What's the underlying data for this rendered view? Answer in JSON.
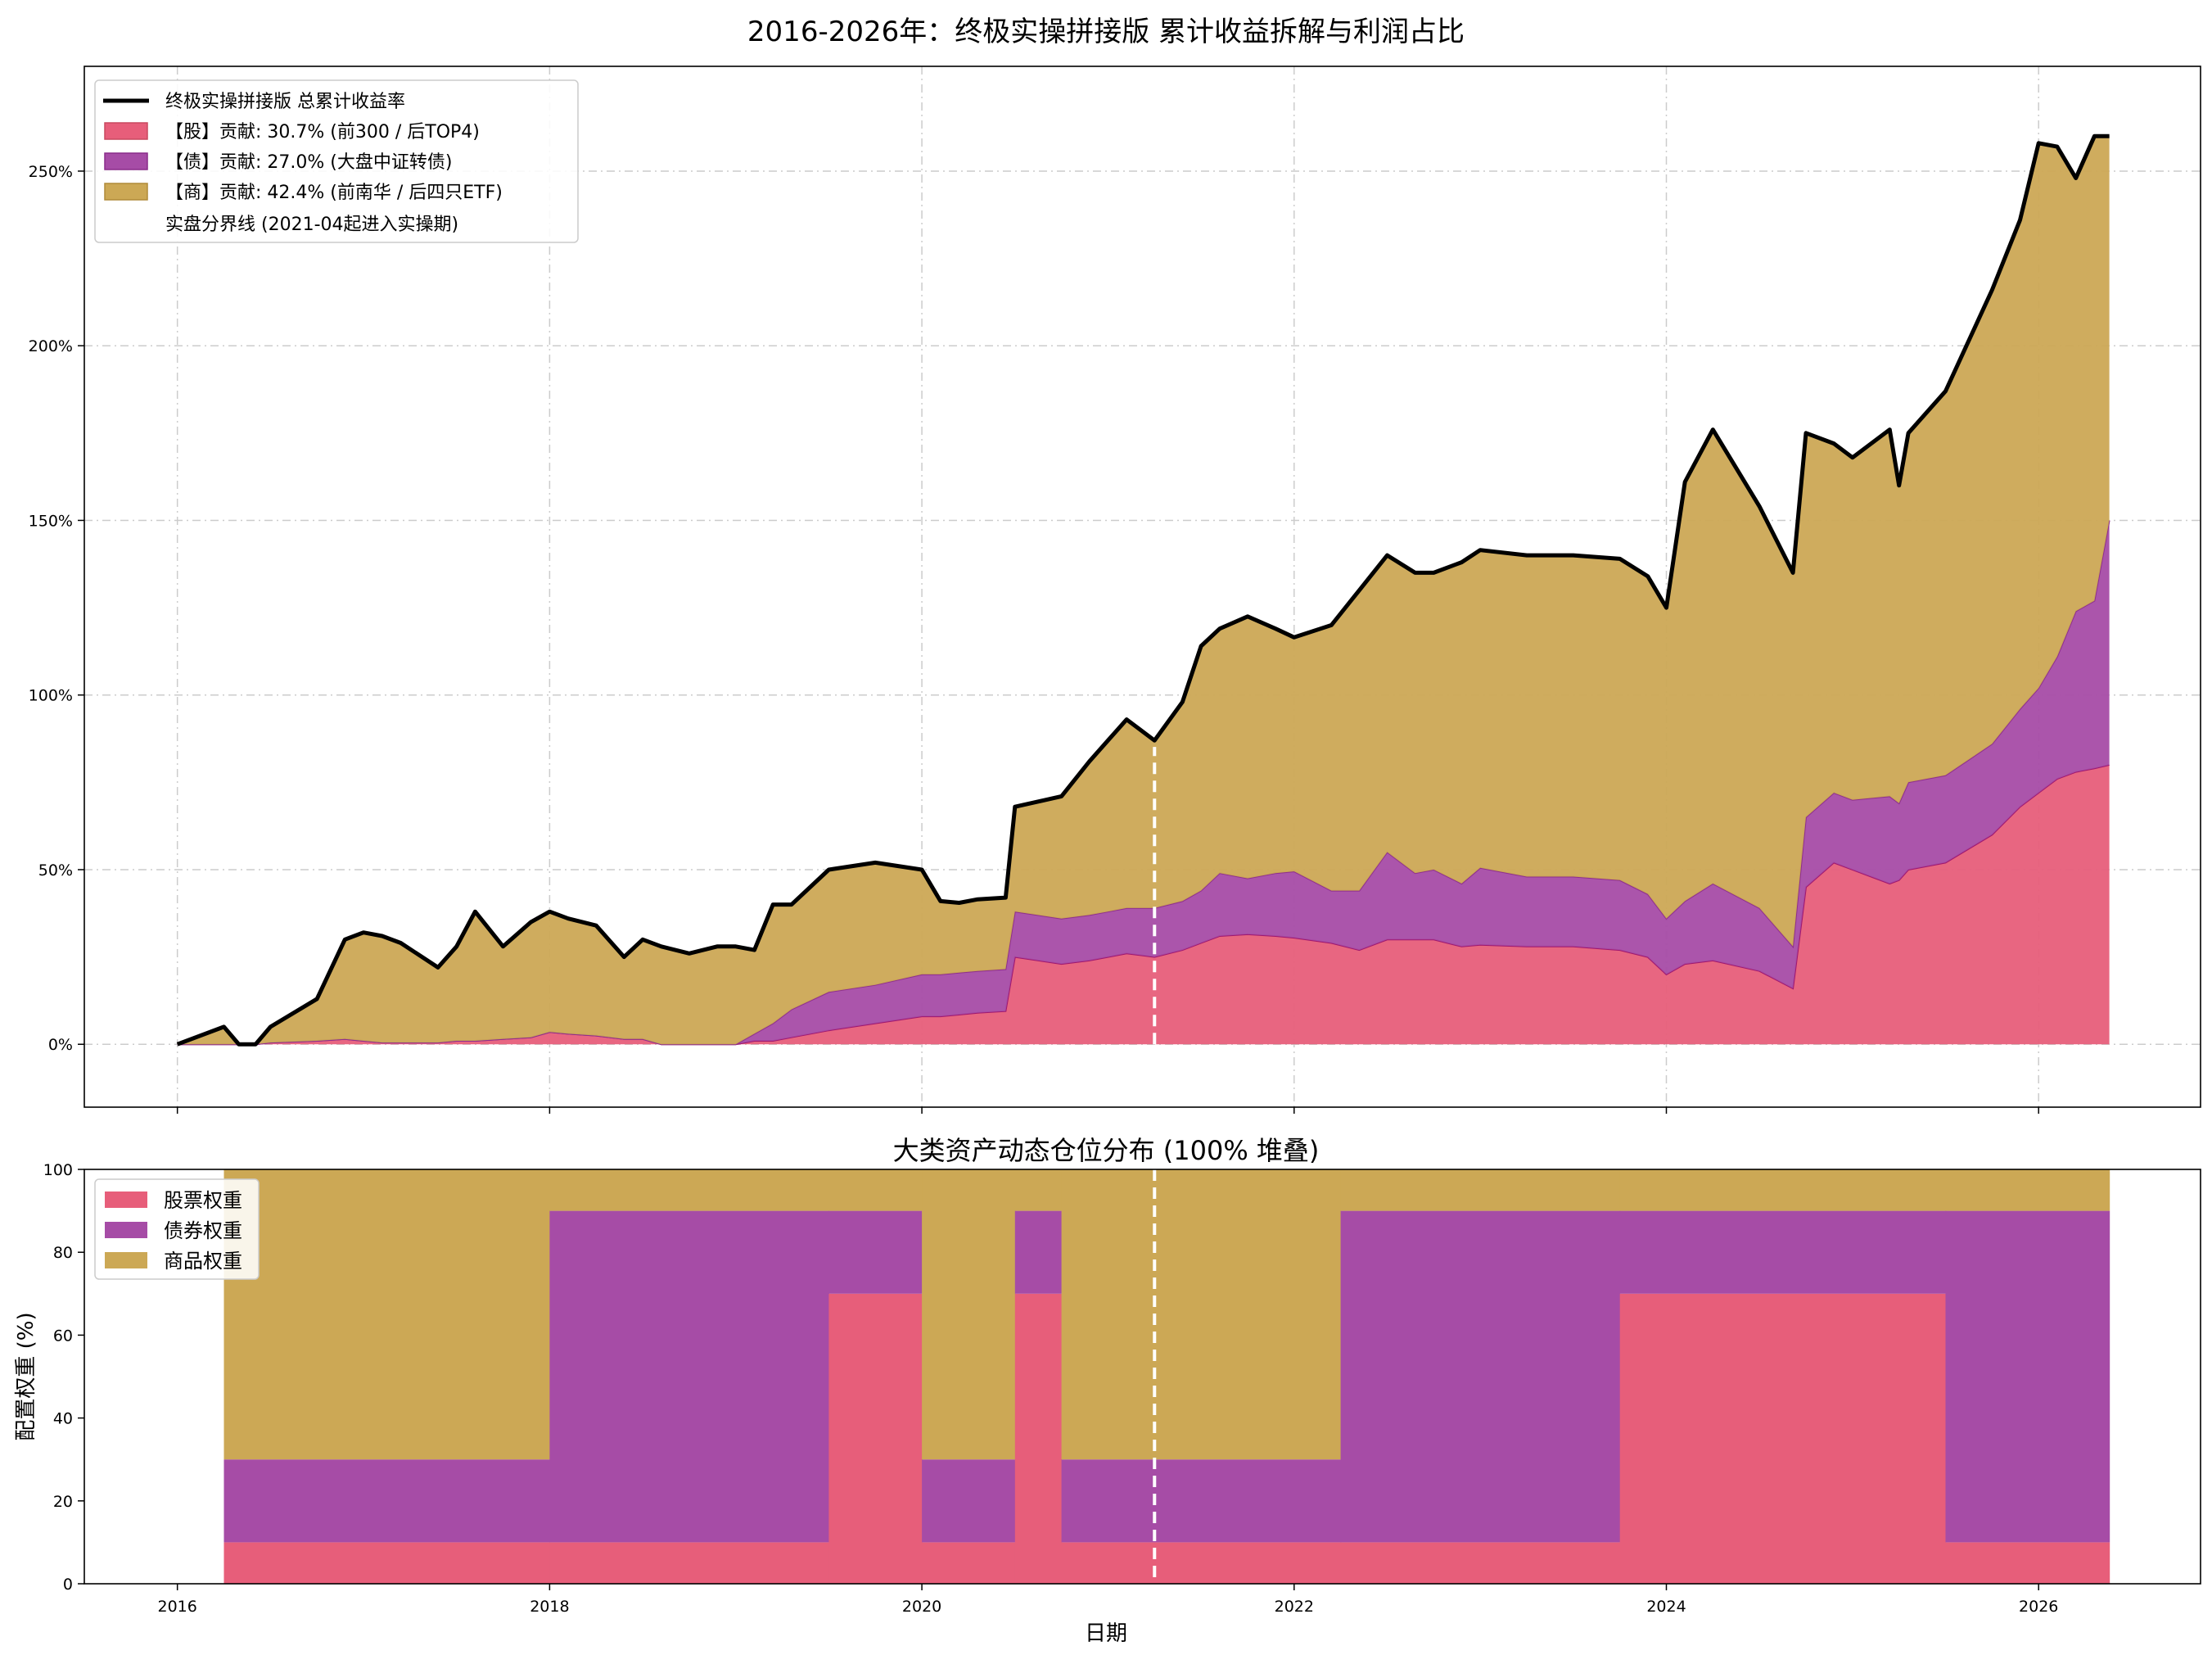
{
  "chart_data": [
    {
      "type": "area",
      "title": "2016-2026年：终极实操拼接版 累计收益拆解与利润占比",
      "xlabel": "",
      "ylabel": "",
      "x_ticks": [
        "2016",
        "2018",
        "2020",
        "2022",
        "2024",
        "2026"
      ],
      "y_ticks": [
        "0%",
        "50%",
        "100%",
        "150%",
        "200%",
        "250%"
      ],
      "ylim": [
        -18,
        280
      ],
      "xlim": [
        2015.5,
        2026.87
      ],
      "grid": true,
      "legend_position": "top-left",
      "legend": [
        {
          "label": "终极实操拼接版 总累计收益率",
          "kind": "line",
          "color": "#000000"
        },
        {
          "label": "【股】贡献: 30.7% (前300 / 后TOP4)",
          "kind": "patch",
          "color": "#E75E7A"
        },
        {
          "label": "【债】贡献: 27.0% (大盘中证转债)",
          "kind": "patch",
          "color": "#A64CA6"
        },
        {
          "label": "【商】贡献: 42.4% (前南华 / 后四只ETF)",
          "kind": "patch",
          "color": "#CCA855"
        },
        {
          "label": "实盘分界线 (2021-04起进入实操期)",
          "kind": "dashed",
          "color": "#ffffff"
        }
      ],
      "divider_x": 2021.25,
      "x": [
        2016.0,
        2016.25,
        2016.33,
        2016.42,
        2016.5,
        2016.75,
        2016.9,
        2017.0,
        2017.1,
        2017.2,
        2017.4,
        2017.5,
        2017.6,
        2017.75,
        2017.9,
        2018.0,
        2018.1,
        2018.25,
        2018.4,
        2018.5,
        2018.6,
        2018.75,
        2018.9,
        2019.0,
        2019.1,
        2019.2,
        2019.3,
        2019.5,
        2019.75,
        2020.0,
        2020.1,
        2020.2,
        2020.3,
        2020.45,
        2020.5,
        2020.75,
        2020.9,
        2021.0,
        2021.1,
        2021.25,
        2021.4,
        2021.5,
        2021.6,
        2021.75,
        2021.9,
        2022.0,
        2022.2,
        2022.35,
        2022.5,
        2022.65,
        2022.75,
        2022.9,
        2023.0,
        2023.25,
        2023.5,
        2023.75,
        2023.9,
        2024.0,
        2024.1,
        2024.25,
        2024.5,
        2024.68,
        2024.75,
        2024.9,
        2025.0,
        2025.2,
        2025.25,
        2025.3,
        2025.5,
        2025.75,
        2025.9,
        2026.0,
        2026.1,
        2026.2,
        2026.3,
        2026.38
      ],
      "series": [
        {
          "name": "【股】贡献: 30.7% (前300 / 后TOP4)",
          "color": "#E75E7A",
          "values": [
            0,
            0,
            0,
            0,
            0.5,
            1,
            1.5,
            1,
            0.5,
            0.5,
            0.5,
            1,
            1,
            1.5,
            2,
            3.5,
            3,
            2.5,
            1.5,
            1.5,
            0,
            0,
            0,
            0,
            1,
            1,
            2,
            4,
            6,
            8,
            8,
            8.5,
            9,
            9.5,
            25,
            23,
            24,
            25,
            26,
            25,
            27,
            29,
            31,
            31.5,
            31,
            30.5,
            29,
            27,
            30,
            30,
            30,
            28,
            28.5,
            28,
            28,
            27,
            25,
            20,
            23,
            24,
            21,
            16,
            45,
            52,
            50,
            46,
            47,
            50,
            52,
            60,
            68,
            72,
            76,
            78,
            79,
            80
          ]
        },
        {
          "name": "【债】贡献: 27.0% (大盘中证转债)",
          "color": "#A64CA6",
          "values": [
            0,
            0,
            0,
            0,
            0,
            0,
            0,
            0,
            0,
            0,
            0,
            0,
            0,
            0,
            0,
            0,
            0,
            0,
            0,
            0,
            0,
            0,
            0,
            0,
            2,
            5,
            8,
            11,
            11,
            12,
            12,
            12,
            12,
            12,
            13,
            13,
            13,
            13,
            13,
            14,
            14,
            15,
            18,
            16,
            18,
            19,
            15,
            17,
            25,
            19,
            20,
            18,
            22,
            20,
            20,
            20,
            18,
            16,
            18,
            22,
            18,
            12,
            20,
            20,
            20,
            25,
            22,
            25,
            25,
            26,
            28,
            30,
            35,
            46,
            48,
            70
          ]
        },
        {
          "name": "【商】贡献: 42.4% (前南华 / 后四只ETF)",
          "color": "#CCA855",
          "values": [
            0,
            5,
            0,
            0,
            4.5,
            12,
            28.5,
            31,
            30.5,
            28.5,
            21.5,
            27,
            37,
            26.5,
            33,
            34.5,
            33,
            31.5,
            23.5,
            28.5,
            28,
            26,
            28,
            28,
            24,
            34,
            30,
            35,
            35,
            30,
            21,
            20,
            20.5,
            20.5,
            30,
            35,
            44,
            49,
            54,
            48,
            57,
            70,
            70,
            75,
            70,
            67,
            76,
            86,
            85,
            86,
            85,
            92,
            91,
            92,
            92,
            92,
            91,
            89,
            120,
            130,
            115,
            107,
            110,
            100,
            98,
            105,
            91,
            100,
            110,
            130,
            140,
            156,
            146,
            124,
            133,
            110
          ]
        }
      ],
      "total_cumulative_return": [
        0,
        5,
        0,
        0,
        5,
        13,
        30,
        32,
        31,
        29,
        22,
        28,
        38,
        28,
        35,
        38,
        36,
        34,
        25,
        30,
        28,
        26,
        28,
        28,
        27,
        40,
        40,
        50,
        52,
        50,
        41,
        40.5,
        41.5,
        42,
        68,
        71,
        81,
        87,
        93,
        87,
        98,
        114,
        119,
        122.5,
        119,
        116.5,
        120,
        130,
        140,
        135,
        135,
        138,
        141.5,
        140,
        140,
        139,
        134,
        125,
        161,
        176,
        154,
        135,
        175,
        172,
        168,
        176,
        160,
        175,
        187,
        216,
        236,
        258,
        257,
        248,
        260,
        260
      ]
    },
    {
      "type": "area",
      "stacked_percent": true,
      "title": "大类资产动态仓位分布 (100% 堆叠)",
      "xlabel": "日期",
      "ylabel": "配置权重 (%)",
      "x_ticks": [
        "2016",
        "2018",
        "2020",
        "2022",
        "2024",
        "2026"
      ],
      "y_ticks": [
        "0",
        "20",
        "40",
        "60",
        "80",
        "100"
      ],
      "ylim": [
        0,
        100
      ],
      "xlim": [
        2015.5,
        2026.87
      ],
      "grid": false,
      "legend_position": "top-left",
      "legend": [
        {
          "label": "股票权重",
          "color": "#E75E7A"
        },
        {
          "label": "债券权重",
          "color": "#A64CA6"
        },
        {
          "label": "商品权重",
          "color": "#CCA855"
        }
      ],
      "divider_x": 2021.25,
      "segments": [
        {
          "start": 2016.25,
          "end": 2018.0,
          "stock": 10,
          "bond": 20,
          "commodity": 70
        },
        {
          "start": 2018.0,
          "end": 2019.5,
          "stock": 10,
          "bond": 80,
          "commodity": 10
        },
        {
          "start": 2019.5,
          "end": 2020.0,
          "stock": 70,
          "bond": 20,
          "commodity": 10
        },
        {
          "start": 2020.0,
          "end": 2020.5,
          "stock": 10,
          "bond": 20,
          "commodity": 70
        },
        {
          "start": 2020.5,
          "end": 2020.75,
          "stock": 70,
          "bond": 20,
          "commodity": 10
        },
        {
          "start": 2020.75,
          "end": 2022.25,
          "stock": 10,
          "bond": 20,
          "commodity": 70
        },
        {
          "start": 2022.25,
          "end": 2023.75,
          "stock": 10,
          "bond": 80,
          "commodity": 10
        },
        {
          "start": 2023.75,
          "end": 2025.5,
          "stock": 70,
          "bond": 20,
          "commodity": 10
        },
        {
          "start": 2025.5,
          "end": 2026.38,
          "stock": 10,
          "bond": 80,
          "commodity": 10
        }
      ]
    }
  ]
}
